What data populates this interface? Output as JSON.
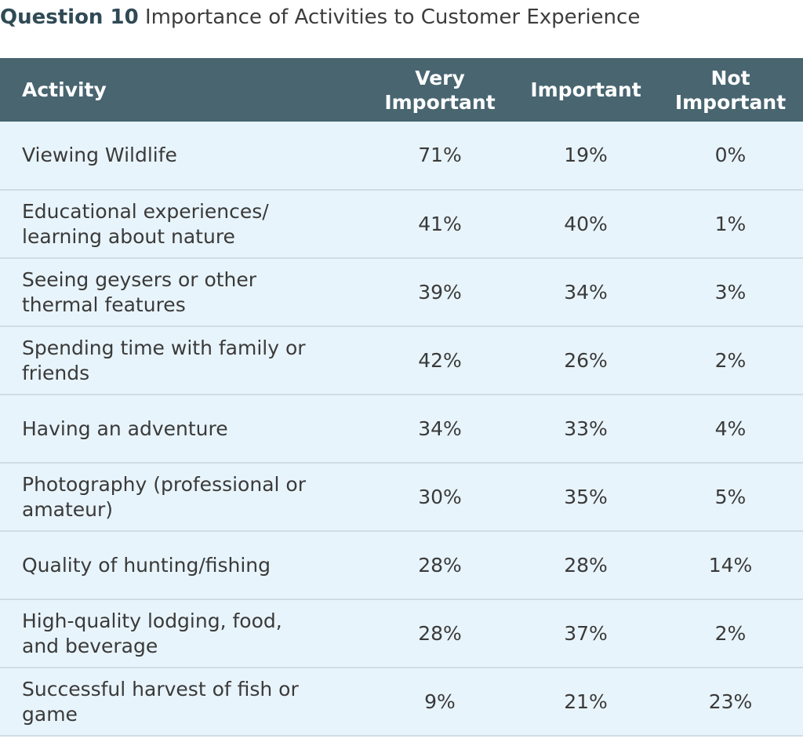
{
  "title": {
    "question": "Question 10",
    "text": "Importance of Activities to Customer Experience"
  },
  "table": {
    "headers": {
      "activity": "Activity",
      "very_important": [
        "Very",
        "Important"
      ],
      "important": "Important",
      "not_important": [
        "Not",
        "Important"
      ]
    },
    "rows": [
      {
        "activity": [
          "Viewing Wildlife"
        ],
        "very_important": "71%",
        "important": "19%",
        "not_important": "0%"
      },
      {
        "activity": [
          "Educational experiences/",
          "learning about nature"
        ],
        "very_important": "41%",
        "important": "40%",
        "not_important": "1%"
      },
      {
        "activity": [
          "Seeing geysers or other",
          "thermal features"
        ],
        "very_important": "39%",
        "important": "34%",
        "not_important": "3%"
      },
      {
        "activity": [
          "Spending time with family or",
          "friends"
        ],
        "very_important": "42%",
        "important": "26%",
        "not_important": "2%"
      },
      {
        "activity": [
          "Having an adventure"
        ],
        "very_important": "34%",
        "important": "33%",
        "not_important": "4%"
      },
      {
        "activity": [
          "Photography (professional or",
          "amateur)"
        ],
        "very_important": "30%",
        "important": "35%",
        "not_important": "5%"
      },
      {
        "activity": [
          "Quality of hunting/fishing"
        ],
        "very_important": "28%",
        "important": "28%",
        "not_important": "14%"
      },
      {
        "activity": [
          "High-quality lodging, food,",
          "and beverage"
        ],
        "very_important": "28%",
        "important": "37%",
        "not_important": "2%"
      },
      {
        "activity": [
          "Successful harvest of fish or",
          "game"
        ],
        "very_important": "9%",
        "important": "21%",
        "not_important": "23%"
      }
    ]
  },
  "colors": {
    "header_bg": "#486570",
    "row_bg": "#e8f4fb",
    "row_divider": "#cfdde4",
    "title_accent": "#2f4a55"
  }
}
